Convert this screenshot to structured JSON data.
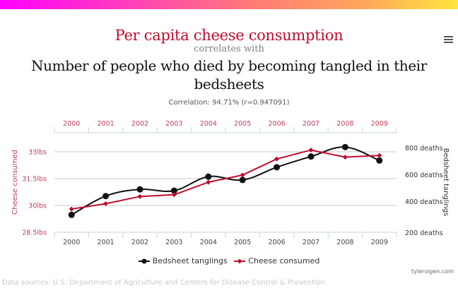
{
  "header": {
    "title_primary": "Per capita cheese consumption",
    "title_connector": "correlates with",
    "title_secondary": "Number of people who died by becoming tangled in their bedsheets",
    "correlation": "Correlation: 94.71% (r=0.947091)",
    "menu_icon": "hamburger-menu-icon"
  },
  "colors": {
    "cheese": "#c00d2b",
    "bedsheet": "#111111",
    "gradient_start": "#ff00ff",
    "gradient_end": "#ffe640"
  },
  "chart_data": {
    "type": "line",
    "title": "Per capita cheese consumption correlates with Number of people who died by becoming tangled in their bedsheets",
    "categories": [
      "2000",
      "2001",
      "2002",
      "2003",
      "2004",
      "2005",
      "2006",
      "2007",
      "2008",
      "2009"
    ],
    "top_xaxis_ticks": [
      "2000",
      "2001",
      "2002",
      "2003",
      "2004",
      "2005",
      "2006",
      "2007",
      "2008",
      "2009"
    ],
    "bottom_xaxis_ticks": [
      "2000",
      "2001",
      "2002",
      "2003",
      "2004",
      "2005",
      "2006",
      "2007",
      "2008",
      "2009"
    ],
    "left_axis": {
      "label": "Cheese consumed",
      "ylim": [
        28.5,
        33
      ],
      "ticks": [
        28.5,
        30,
        31.5,
        33
      ],
      "tick_labels": [
        "28.5lbs",
        "30lbs",
        "31.5lbs",
        "33lbs"
      ]
    },
    "right_axis": {
      "label": "Bedsheet tanglings",
      "ylim": [
        200,
        800
      ],
      "ticks": [
        200,
        400,
        600,
        800
      ],
      "tick_labels": [
        "200 deaths",
        "400 deaths",
        "600 deaths",
        "800 deaths"
      ]
    },
    "series": [
      {
        "name": "Bedsheet tanglings",
        "axis": "right",
        "marker": "circle",
        "color": "#111111",
        "values": [
          330,
          470,
          520,
          510,
          615,
          590,
          685,
          765,
          835,
          735
        ]
      },
      {
        "name": "Cheese consumed",
        "axis": "left",
        "marker": "diamond",
        "color": "#c00d2b",
        "values": [
          29.8,
          30.1,
          30.5,
          30.6,
          31.3,
          31.7,
          32.6,
          33.1,
          32.7,
          32.8
        ]
      }
    ],
    "grid": true,
    "legend_position": "bottom-center"
  },
  "legend": {
    "items": [
      {
        "label": "Bedsheet tanglings"
      },
      {
        "label": "Cheese consumed"
      }
    ]
  },
  "footer": {
    "credit": "tylervigen.com",
    "sources": "Data sources: U.S. Department of Agriculture and Centers for Disease Control & Prevention"
  }
}
